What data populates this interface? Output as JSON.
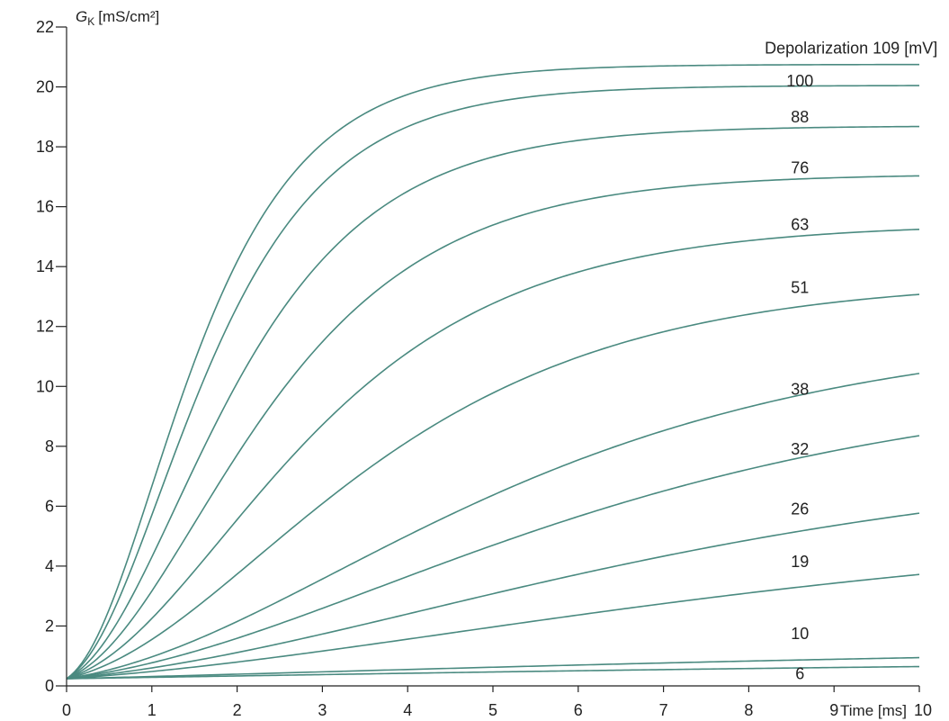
{
  "chart_data": {
    "type": "line",
    "title": "",
    "ylabel_symbol": "G",
    "ylabel_subscript": "K",
    "ylabel_unit": "[mS/cm²]",
    "xlabel": "Time [ms]",
    "xlim": [
      0,
      10
    ],
    "ylim": [
      0,
      22
    ],
    "x_ticks": [
      "0",
      "1",
      "2",
      "3",
      "4",
      "5",
      "6",
      "7",
      "8",
      "9",
      "10"
    ],
    "y_ticks": [
      "0",
      "2",
      "4",
      "6",
      "8",
      "10",
      "12",
      "14",
      "16",
      "18",
      "20",
      "22"
    ],
    "grid": false,
    "line_color": "#4a8a80",
    "legend_title": "Depolarization",
    "legend_unit": "[mV]",
    "baseline": 0.24,
    "series": [
      {
        "name": "6",
        "g_inf": 0.95,
        "tau": 8.7
      },
      {
        "name": "10",
        "g_inf": 1.4,
        "tau": 7.5
      },
      {
        "name": "19",
        "g_inf": 5.6,
        "tau": 5.8
      },
      {
        "name": "26",
        "g_inf": 7.9,
        "tau": 4.9
      },
      {
        "name": "32",
        "g_inf": 10.4,
        "tau": 4.1
      },
      {
        "name": "38",
        "g_inf": 12.0,
        "tau": 3.45
      },
      {
        "name": "51",
        "g_inf": 13.6,
        "tau": 2.4
      },
      {
        "name": "63",
        "g_inf": 15.45,
        "tau": 1.9
      },
      {
        "name": "76",
        "g_inf": 17.1,
        "tau": 1.55
      },
      {
        "name": "88",
        "g_inf": 18.7,
        "tau": 1.3
      },
      {
        "name": "100",
        "g_inf": 20.05,
        "tau": 1.1
      },
      {
        "name": "109",
        "g_inf": 20.75,
        "tau": 1.0
      }
    ],
    "labels": [
      {
        "text": "Depolarization 109 [mV]",
        "series": "109",
        "x": 9.2,
        "y": 21.3
      },
      {
        "text": "100",
        "series": "100",
        "x": 8.6,
        "y": 20.2
      },
      {
        "text": "88",
        "series": "88",
        "x": 8.6,
        "y": 19.0
      },
      {
        "text": "76",
        "series": "76",
        "x": 8.6,
        "y": 17.3
      },
      {
        "text": "63",
        "series": "63",
        "x": 8.6,
        "y": 15.4
      },
      {
        "text": "51",
        "series": "51",
        "x": 8.6,
        "y": 13.3
      },
      {
        "text": "38",
        "series": "38",
        "x": 8.6,
        "y": 9.9
      },
      {
        "text": "32",
        "series": "32",
        "x": 8.6,
        "y": 7.9
      },
      {
        "text": "26",
        "series": "26",
        "x": 8.6,
        "y": 5.9
      },
      {
        "text": "19",
        "series": "19",
        "x": 8.6,
        "y": 4.15
      },
      {
        "text": "10",
        "series": "10",
        "x": 8.6,
        "y": 1.75
      },
      {
        "text": "6",
        "series": "6",
        "x": 8.6,
        "y": 0.4
      }
    ]
  }
}
